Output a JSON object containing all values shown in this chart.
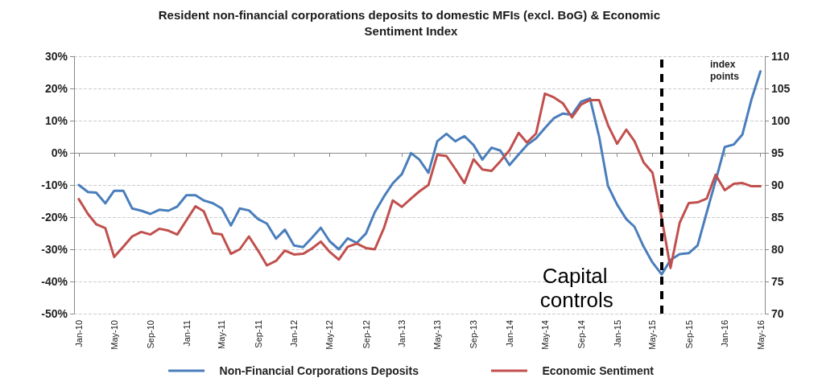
{
  "chart_data": {
    "type": "line",
    "title": "Resident non-financial corporations deposits to domestic MFIs (excl. BoG) & Economic Sentiment Index",
    "y2label": "index points",
    "x": [
      "2010-01",
      "2010-02",
      "2010-03",
      "2010-04",
      "2010-05",
      "2010-06",
      "2010-07",
      "2010-08",
      "2010-09",
      "2010-10",
      "2010-11",
      "2010-12",
      "2011-01",
      "2011-02",
      "2011-03",
      "2011-04",
      "2011-05",
      "2011-06",
      "2011-07",
      "2011-08",
      "2011-09",
      "2011-10",
      "2011-11",
      "2011-12",
      "2012-01",
      "2012-02",
      "2012-03",
      "2012-04",
      "2012-05",
      "2012-06",
      "2012-07",
      "2012-08",
      "2012-09",
      "2012-10",
      "2012-11",
      "2012-12",
      "2013-01",
      "2013-02",
      "2013-03",
      "2013-04",
      "2013-05",
      "2013-06",
      "2013-07",
      "2013-08",
      "2013-09",
      "2013-10",
      "2013-11",
      "2013-12",
      "2014-01",
      "2014-02",
      "2014-03",
      "2014-04",
      "2014-05",
      "2014-06",
      "2014-07",
      "2014-08",
      "2014-09",
      "2014-10",
      "2014-11",
      "2014-12",
      "2015-01",
      "2015-02",
      "2015-03",
      "2015-04",
      "2015-05",
      "2015-06",
      "2015-07",
      "2015-08",
      "2015-09",
      "2015-10",
      "2015-11",
      "2015-12",
      "2016-01",
      "2016-02",
      "2016-03",
      "2016-04",
      "2016-05"
    ],
    "series": [
      {
        "name": "Non-Financial Corporations Deposits",
        "color": "#4a7ebb",
        "values": [
          -10,
          -12.2,
          -12.4,
          -15.7,
          -11.8,
          -11.8,
          -17.3,
          -18,
          -19,
          -17.7,
          -18,
          -16.7,
          -13.2,
          -13.2,
          -14.8,
          -15.7,
          -17.3,
          -22.6,
          -17.3,
          -17.9,
          -20.6,
          -22,
          -26.7,
          -23.9,
          -28.8,
          -29.3,
          -26.5,
          -23.3,
          -27.5,
          -30,
          -26.6,
          -28,
          -25.1,
          -18.5,
          -13.6,
          -9.5,
          -6.6,
          -0.1,
          -2.1,
          -6.2,
          3.6,
          5.9,
          3.6,
          5.2,
          2.4,
          -2.1,
          1.6,
          0.7,
          -3.8,
          -0.5,
          2.4,
          4.5,
          7.7,
          10.8,
          12.2,
          11.8,
          15.9,
          16.9,
          5,
          -10.3,
          -16.1,
          -20.6,
          -23,
          -29.2,
          -34.1,
          -37.8,
          -33.3,
          -31.5,
          -31.2,
          -28.8,
          -18.5,
          -8.7,
          1.8,
          2.6,
          5.7,
          16.7,
          25.3
        ]
      },
      {
        "name": "Economic Sentiment",
        "color": "#c0504d",
        "axis": "y2",
        "values": [
          87.8,
          85.5,
          83.9,
          83.3,
          78.8,
          80.4,
          82,
          82.7,
          82.3,
          83.2,
          82.9,
          82.3,
          84.5,
          86.7,
          85.9,
          82.5,
          82.3,
          79.3,
          80,
          82,
          79.8,
          77.5,
          78.2,
          79.8,
          79.2,
          79.3,
          80.1,
          81.2,
          79.6,
          78.4,
          80.4,
          80.9,
          80.2,
          80,
          83.3,
          87.6,
          86.6,
          87.9,
          89,
          90,
          94.7,
          94.5,
          92.5,
          90.3,
          94,
          92.4,
          92.2,
          93.7,
          95.4,
          98.1,
          96.6,
          98,
          104.2,
          103.6,
          102.7,
          100.5,
          102.5,
          103.2,
          103.2,
          99.3,
          96.4,
          98.6,
          96.8,
          93.5,
          91.9,
          84.9,
          77.1,
          84.1,
          87.2,
          87.3,
          87.9,
          91.6,
          89.2,
          90.2,
          90.3,
          89.8,
          89.8
        ]
      }
    ],
    "xlim": [
      "2009-12-16",
      "2016-05-16"
    ],
    "xticks": [
      {
        "value": "2010-01",
        "label": "Jan-10"
      },
      {
        "value": "2010-05",
        "label": "May-10"
      },
      {
        "value": "2010-09",
        "label": "Sep-10"
      },
      {
        "value": "2011-01",
        "label": "Jan-11"
      },
      {
        "value": "2011-05",
        "label": "May-11"
      },
      {
        "value": "2011-09",
        "label": "Sep-11"
      },
      {
        "value": "2012-01",
        "label": "Jan-12"
      },
      {
        "value": "2012-05",
        "label": "May-12"
      },
      {
        "value": "2012-09",
        "label": "Sep-12"
      },
      {
        "value": "2013-01",
        "label": "Jan-13"
      },
      {
        "value": "2013-05",
        "label": "May-13"
      },
      {
        "value": "2013-09",
        "label": "Sep-13"
      },
      {
        "value": "2014-01",
        "label": "Jan-14"
      },
      {
        "value": "2014-05",
        "label": "May-14"
      },
      {
        "value": "2014-09",
        "label": "Sep-14"
      },
      {
        "value": "2015-01",
        "label": "Jan-15"
      },
      {
        "value": "2015-05",
        "label": "May-15"
      },
      {
        "value": "2015-09",
        "label": "Sep-15"
      },
      {
        "value": "2016-01",
        "label": "Jan-16"
      },
      {
        "value": "2016-05",
        "label": "May-16"
      }
    ],
    "ylim": [
      -50,
      30
    ],
    "yticks": [
      {
        "value": -50,
        "label": "-50%"
      },
      {
        "value": -40,
        "label": "-40%"
      },
      {
        "value": -30,
        "label": "-30%"
      },
      {
        "value": -20,
        "label": "-20%"
      },
      {
        "value": -10,
        "label": "-10%"
      },
      {
        "value": 0,
        "label": "0%"
      },
      {
        "value": 10,
        "label": "10%"
      },
      {
        "value": 20,
        "label": "20%"
      },
      {
        "value": 30,
        "label": "30%"
      }
    ],
    "y2lim": [
      70,
      110
    ],
    "y2ticks": [
      70,
      75,
      80,
      85,
      90,
      95,
      100,
      105,
      110
    ],
    "ref_lines": [
      {
        "axis": "x",
        "value": "2015-06",
        "label": "Capital controls",
        "color": "#000000",
        "line_style": "dashed"
      }
    ],
    "grid": "y",
    "legend": "bottom",
    "marker": "none",
    "line_style": "solid"
  }
}
